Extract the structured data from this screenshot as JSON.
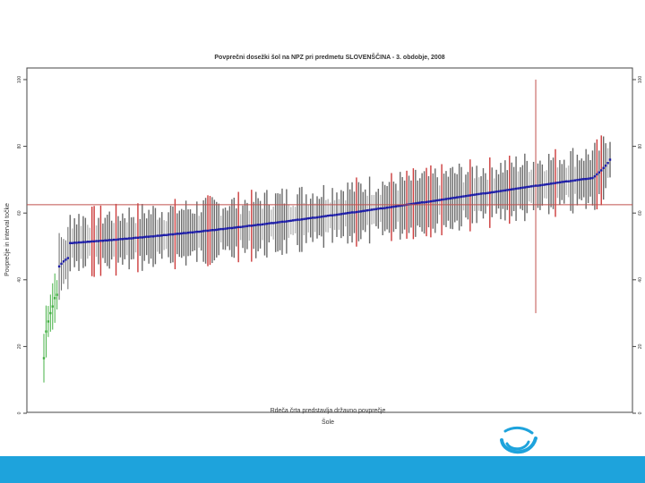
{
  "colors": {
    "mean_marker": "#1a1aa6",
    "mean_line": "#1a1aa6",
    "bar_default": "#6a6a6a",
    "bar_highlight": "#cc3b3b",
    "bar_light": "#b8b8b8",
    "low_marker": "#44b044",
    "reference_line": "#c0504d",
    "footer": "#1ea3dc",
    "logo": "#1ea3dc"
  },
  "footer": {
    "logo_icon": "swirl-logo-icon"
  },
  "chart_data": {
    "type": "scatter",
    "title": "Povprečni dosežki šol na NPZ pri predmetu SLOVENŠČINA - 3. obdobje, 2008",
    "ylabel": "Povprečje in interval točke",
    "xlabel": "Rdeča črta predstavlja državno povprečje",
    "xlabel_2": "Šole",
    "ylim": [
      0,
      100
    ],
    "yticks": [
      "0",
      "20",
      "40",
      "60",
      "80",
      "100"
    ],
    "n_schools": 260,
    "start_values": [
      16.5,
      24.5,
      27.5,
      30,
      32,
      34.5,
      35.5,
      44,
      44.8,
      45.5,
      46,
      46.5
    ],
    "body_start": 51,
    "body_end": 70.5,
    "tail_values": [
      71,
      71.6,
      72.2,
      72.8,
      73.5,
      74.2,
      75,
      76
    ],
    "interval_halfwidth": 7,
    "national_average": 62.5,
    "highlighted_school_index": 225,
    "highlighted_school_range": [
      30,
      100
    ]
  }
}
